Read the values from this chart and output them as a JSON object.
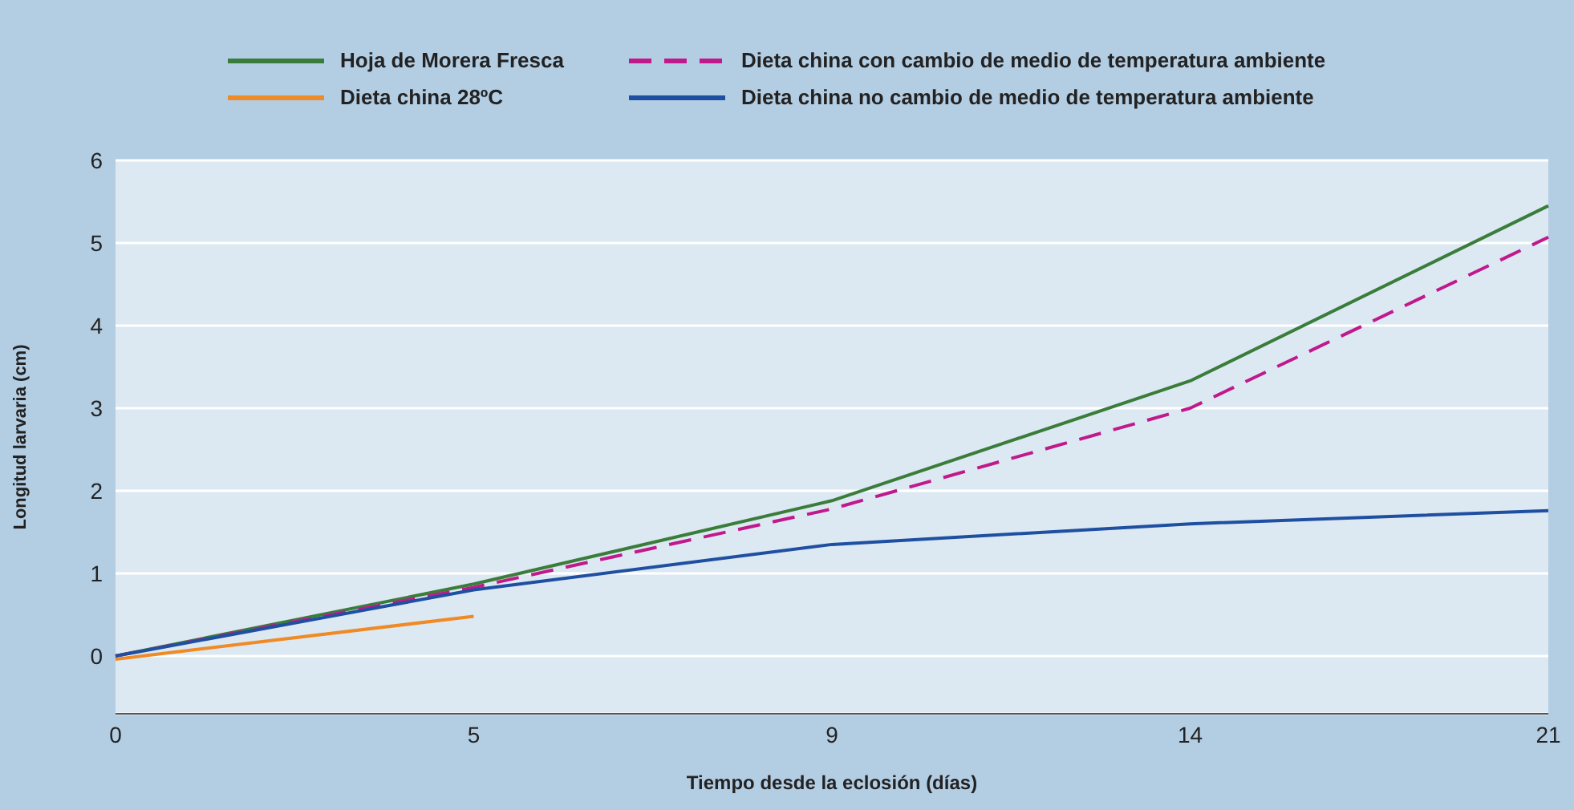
{
  "chart_data": {
    "type": "line",
    "xlabel": "Tiempo desde la eclosión (días)",
    "ylabel": "Longitud larvaria (cm)",
    "categories": [
      "0",
      "5",
      "9",
      "14",
      "21"
    ],
    "ylim": [
      -0.7,
      6
    ],
    "yticks": [
      0,
      1,
      2,
      3,
      4,
      5,
      6
    ],
    "grid": "y",
    "legend": "top",
    "marker": "none",
    "series": [
      {
        "name": "Hoja de Morera Fresca",
        "color": "#3a7d3a",
        "line_style": "solid",
        "values": [
          0,
          0.87,
          1.88,
          3.33,
          5.45
        ]
      },
      {
        "name": "Dieta china con cambio de medio de temperatura ambiente",
        "color": "#c0198c",
        "line_style": "dashed",
        "values": [
          0,
          0.83,
          1.78,
          3.0,
          5.07
        ]
      },
      {
        "name": "Dieta china 28ºC",
        "color": "#f08a24",
        "line_style": "solid",
        "values": [
          -0.04,
          0.48,
          null,
          null,
          null
        ]
      },
      {
        "name": "Dieta china no cambio de medio de temperatura ambiente",
        "color": "#1f4fa0",
        "line_style": "solid",
        "values": [
          0,
          0.8,
          1.35,
          1.6,
          1.76
        ]
      }
    ]
  }
}
